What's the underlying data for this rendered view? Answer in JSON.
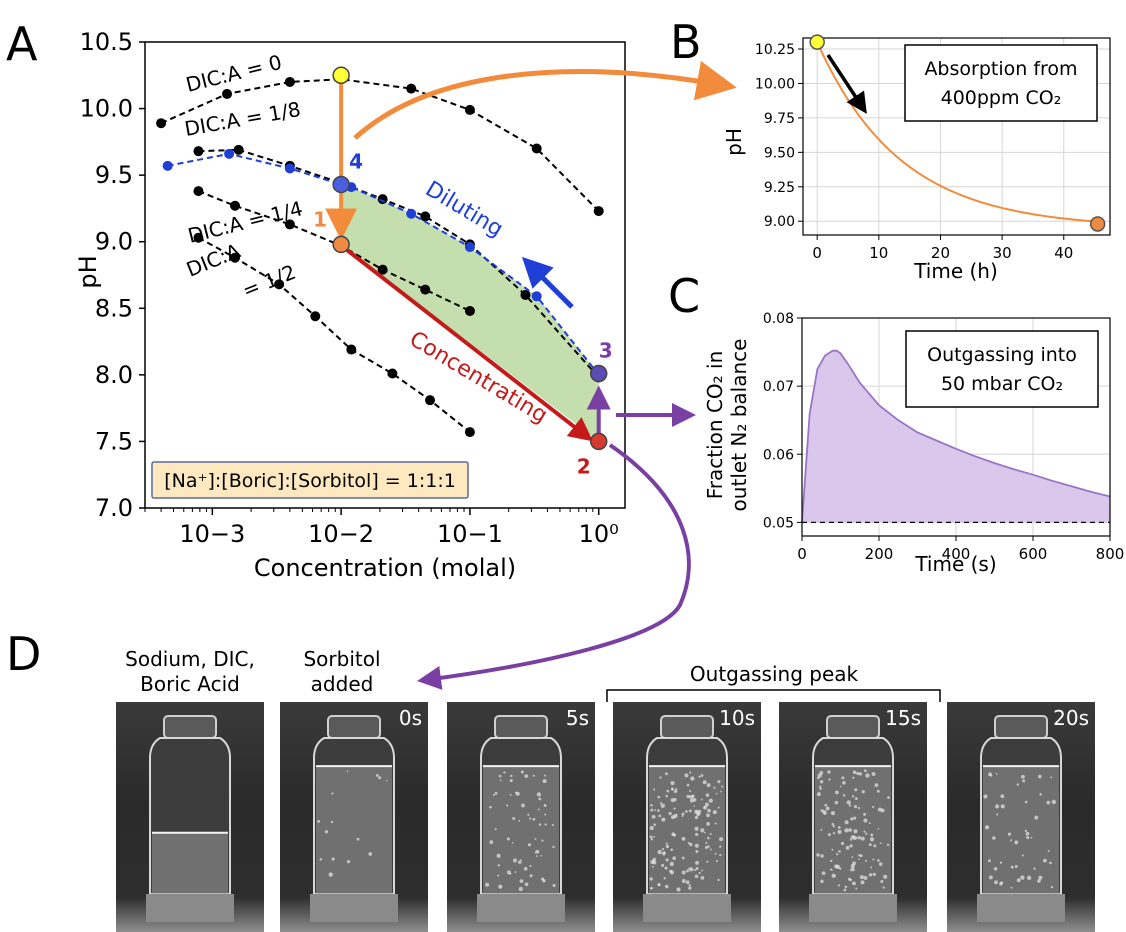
{
  "panels": {
    "A": {
      "letter": "A",
      "chart_data": {
        "type": "line",
        "xscale": "log",
        "xlim": [
          0.0003,
          1.6
        ],
        "ylim": [
          7.0,
          10.5
        ],
        "xlabel": "Concentration (molal)",
        "ylabel": "pH",
        "xticks": [
          {
            "value": 0.001,
            "label": "10−3"
          },
          {
            "value": 0.01,
            "label": "10−2"
          },
          {
            "value": 0.1,
            "label": "10−1"
          },
          {
            "value": 1,
            "label": "10⁰"
          }
        ],
        "yticks": [
          7.0,
          7.5,
          8.0,
          8.5,
          9.0,
          9.5,
          10.0,
          10.5
        ],
        "series": [
          {
            "name": "DIC:A = 0",
            "color": "#000000",
            "x": [
              0.0004,
              0.0013,
              0.004,
              0.01,
              0.035,
              0.1,
              0.33,
              1.0
            ],
            "y": [
              9.89,
              10.11,
              10.2,
              10.22,
              10.15,
              9.99,
              9.7,
              9.23
            ]
          },
          {
            "name": "DIC:A = 1/8",
            "color": "#000000",
            "x": [
              0.00078,
              0.0016,
              0.004,
              0.01,
              0.021,
              0.045,
              0.1,
              0.27,
              1.0
            ],
            "y": [
              9.68,
              9.69,
              9.57,
              9.44,
              9.32,
              9.19,
              8.98,
              8.6,
              7.98
            ]
          },
          {
            "name": "DIC:A = 1/4",
            "color": "#000000",
            "x": [
              0.00078,
              0.0015,
              0.004,
              0.01,
              0.021,
              0.045,
              0.1
            ],
            "y": [
              9.38,
              9.27,
              9.13,
              8.97,
              8.79,
              8.64,
              8.48
            ]
          },
          {
            "name": "DIC:A = 1/2",
            "color": "#000000",
            "x": [
              0.00078,
              0.0015,
              0.0033,
              0.0063,
              0.012,
              0.025,
              0.049,
              0.1
            ],
            "y": [
              9.03,
              8.88,
              8.68,
              8.44,
              8.19,
              8.01,
              7.81,
              7.57
            ]
          },
          {
            "name": "Diluting (1:1:1)",
            "color": "#1f3fd6",
            "x": [
              0.00045,
              0.00135,
              0.004,
              0.01,
              0.012,
              0.035,
              0.1,
              0.33,
              1.0
            ],
            "y": [
              9.57,
              9.66,
              9.55,
              9.43,
              9.41,
              9.21,
              8.96,
              8.59,
              8.0
            ]
          }
        ],
        "curve_labels": [
          "DIC:A = 0",
          "DIC:A = 1/8",
          "DIC:A = 1/4",
          "DIC:A",
          "= 1/2"
        ],
        "cycle_points": [
          {
            "label": "",
            "x": 0.01,
            "y": 10.25,
            "color": "#ffff33"
          },
          {
            "label": "1",
            "x": 0.01,
            "y": 8.98,
            "color": "#ef8a43"
          },
          {
            "label": "2",
            "x": 1.0,
            "y": 7.5,
            "color": "#d43a2f"
          },
          {
            "label": "3",
            "x": 1.0,
            "y": 8.01,
            "color": "#5b4bb5"
          },
          {
            "label": "4",
            "x": 0.01,
            "y": 9.43,
            "color": "#4a5fe0"
          }
        ],
        "process_labels": {
          "diluting": "Diluting",
          "concentrating": "Concentrating"
        },
        "annotation": "[Na⁺]:[Boric]:[Sorbitol] = 1:1:1",
        "colors": {
          "absorb": "#f28c3c",
          "concentrate": "#c41a1a",
          "outgas": "#7a3fa3",
          "dilute": "#1f3fd6",
          "fill": "#c4deae"
        }
      }
    },
    "B": {
      "letter": "B",
      "chart_data": {
        "type": "line",
        "xlim": [
          -2.3,
          47.5
        ],
        "ylim": [
          8.9,
          10.33
        ],
        "xlabel": "Time (h)",
        "ylabel": "pH",
        "xticks": [
          0,
          10,
          20,
          30,
          40
        ],
        "yticks": [
          "9.00",
          "9.25",
          "9.50",
          "9.75",
          "10.00",
          "10.25"
        ],
        "series": [
          {
            "name": "",
            "color": "#f28c3c",
            "x": [
              0,
              5,
              10,
              15,
              20,
              25,
              30,
              35,
              40,
              45.5
            ],
            "y": [
              10.3,
              9.9,
              9.6,
              9.4,
              9.25,
              9.15,
              9.08,
              9.03,
              9.0,
              8.98
            ]
          }
        ],
        "start_point": {
          "x": 0,
          "y": 10.3
        },
        "end_point": {
          "x": 45.5,
          "y": 8.98
        },
        "legend": [
          "Absorption from",
          "400ppm CO₂"
        ],
        "grid": true
      }
    },
    "C": {
      "letter": "C",
      "chart_data": {
        "type": "area",
        "xlim": [
          0,
          800
        ],
        "ylim": [
          0.048,
          0.08
        ],
        "xlabel": "Time (s)",
        "ylabel_lines": [
          "Fraction CO₂ in",
          "outlet N₂ balance"
        ],
        "xticks": [
          0,
          200,
          400,
          600,
          800
        ],
        "yticks": [
          "0.05",
          "0.06",
          "0.07",
          "0.08"
        ],
        "baseline": 0.05,
        "series": [
          {
            "name": "",
            "color": "#9a74c4",
            "x": [
              0,
              10,
              20,
              40,
              60,
              80,
              90,
              100,
              120,
              150,
              200,
              250,
              300,
              350,
              400,
              450,
              500,
              550,
              600,
              650,
              700,
              750,
              800
            ],
            "y": [
              0.05,
              0.058,
              0.066,
              0.0725,
              0.0745,
              0.0752,
              0.0752,
              0.0748,
              0.0732,
              0.0705,
              0.0672,
              0.065,
              0.0632,
              0.062,
              0.0608,
              0.0597,
              0.0587,
              0.0578,
              0.057,
              0.0561,
              0.0553,
              0.0545,
              0.0538
            ]
          }
        ],
        "legend": [
          "Outgassing into",
          "50 mbar CO₂"
        ],
        "grid": true
      }
    },
    "D": {
      "letter": "D",
      "captions": {
        "first": [
          "Sodium, DIC,",
          "Boric Acid"
        ],
        "second": [
          "Sorbitol",
          "added"
        ],
        "peak": "Outgassing peak"
      },
      "photos": [
        {
          "time": "",
          "liquid_level": 0.45,
          "bubbles": 0
        },
        {
          "time": "0s",
          "liquid_level": 0.94,
          "bubbles": 0.1
        },
        {
          "time": "5s",
          "liquid_level": 0.94,
          "bubbles": 0.45
        },
        {
          "time": "10s",
          "liquid_level": 0.94,
          "bubbles": 1.0
        },
        {
          "time": "15s",
          "liquid_level": 0.94,
          "bubbles": 0.85
        },
        {
          "time": "20s",
          "liquid_level": 0.94,
          "bubbles": 0.35
        }
      ]
    }
  }
}
